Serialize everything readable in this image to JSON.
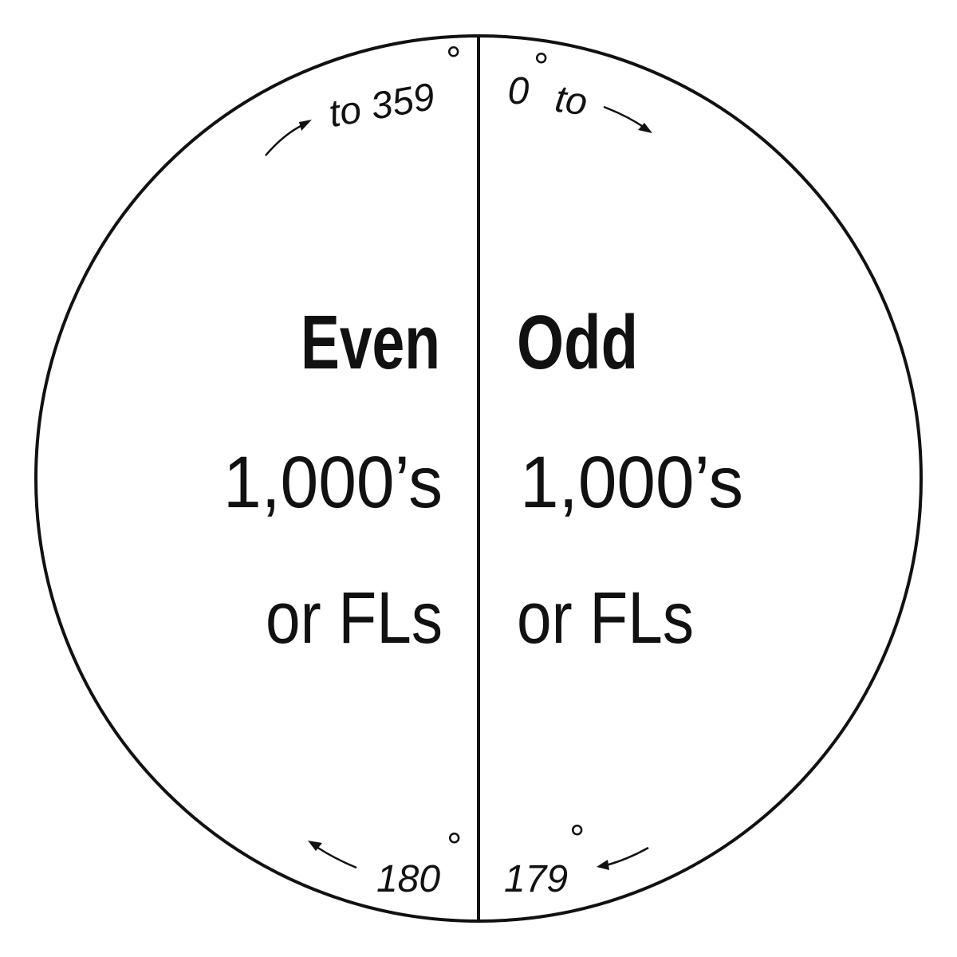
{
  "left": {
    "heading": "Even",
    "line1": "1,000’s",
    "line2": "or FLs",
    "top_label": "to 359",
    "bottom_label": "180"
  },
  "right": {
    "heading": "Odd",
    "line1": "1,000’s",
    "line2": "or FLs",
    "top_label": "0",
    "top_label_suffix": "to",
    "bottom_label": "179"
  },
  "degree_symbol": "°",
  "colors": {
    "ink": "#111111",
    "background": "#ffffff"
  }
}
